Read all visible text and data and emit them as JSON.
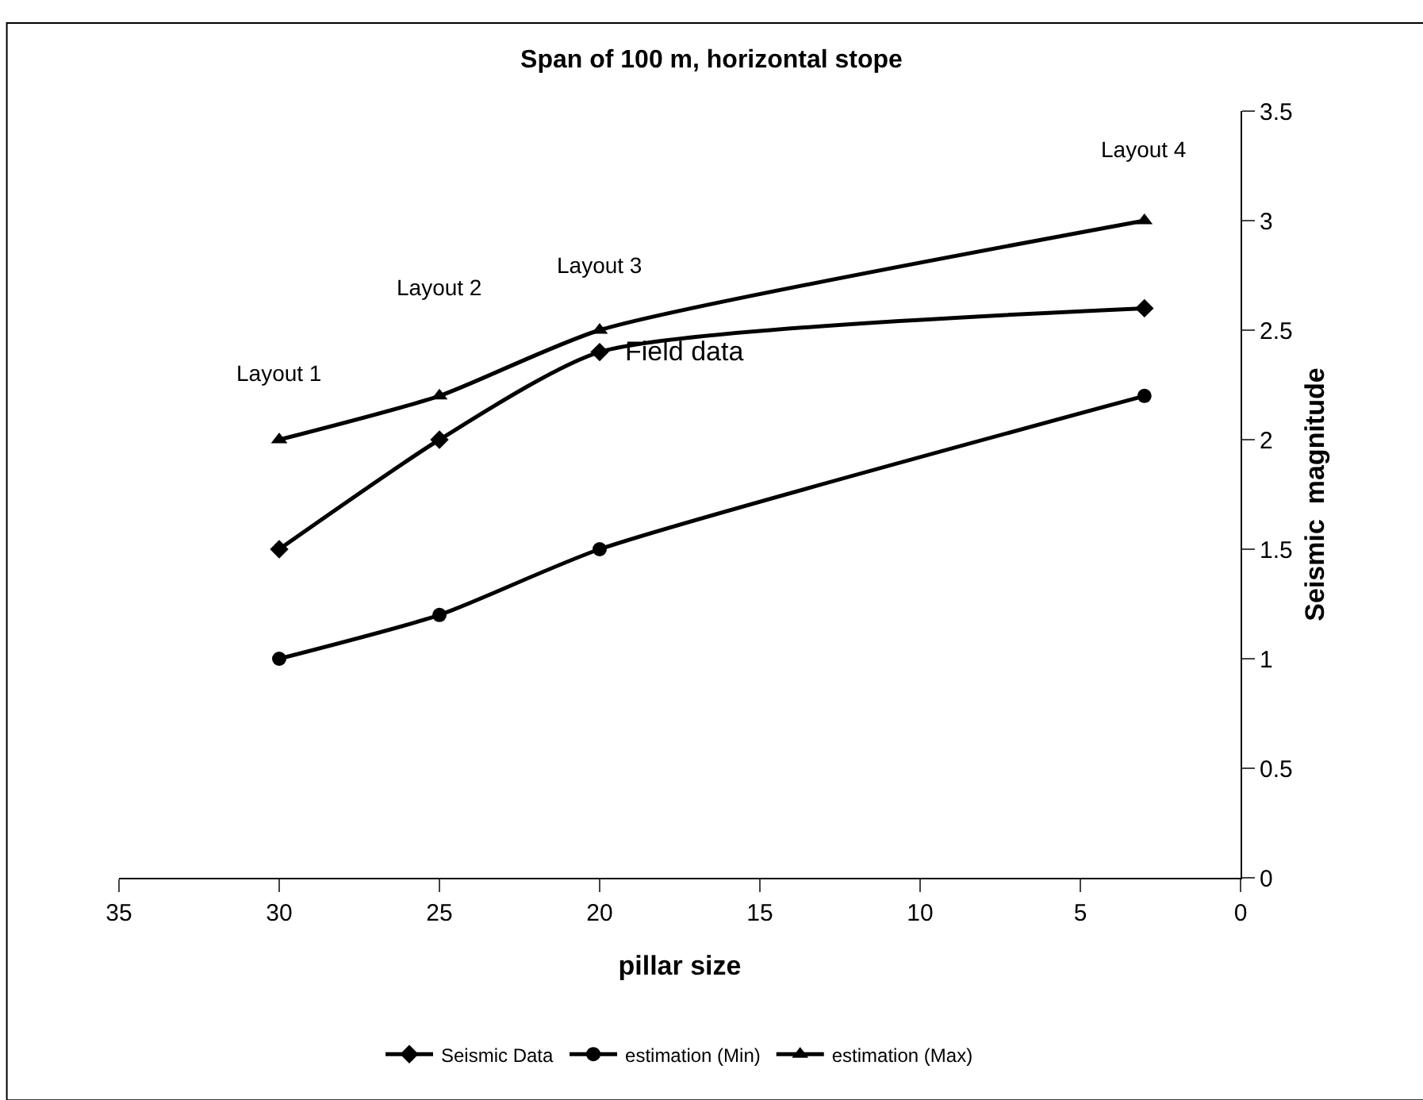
{
  "chart_data": {
    "type": "line",
    "title": "Span of 100 m, horizontal stope",
    "xlabel": "pillar size",
    "ylabel": "Seismic  magnitude",
    "x": [
      30,
      25,
      20,
      3
    ],
    "series": [
      {
        "name": "Seismic Data",
        "color": "#000000",
        "marker": "diamond",
        "values": [
          1.5,
          2.0,
          2.4,
          2.6
        ]
      },
      {
        "name": "estimation (Min)",
        "color": "#000000",
        "marker": "circle",
        "values": [
          1.0,
          1.2,
          1.5,
          2.2
        ]
      },
      {
        "name": "estimation (Max)",
        "color": "#000000",
        "marker": "triangle",
        "values": [
          2.0,
          2.2,
          2.5,
          3.0
        ]
      }
    ],
    "xlim": [
      35,
      0
    ],
    "xticks": [
      35,
      30,
      25,
      20,
      15,
      10,
      5,
      0
    ],
    "ylim": [
      0,
      3.5
    ],
    "yticks": [
      0,
      0.5,
      1,
      1.5,
      2,
      2.5,
      3,
      3.5
    ],
    "grid": false,
    "legend": "bottom",
    "line_style": "solid",
    "annotations": [
      "Layout 1",
      "Layout 2",
      "Layout 3",
      "Layout 4",
      {
        "text": "Field data",
        "x": 20,
        "y": 2.4
      }
    ]
  }
}
